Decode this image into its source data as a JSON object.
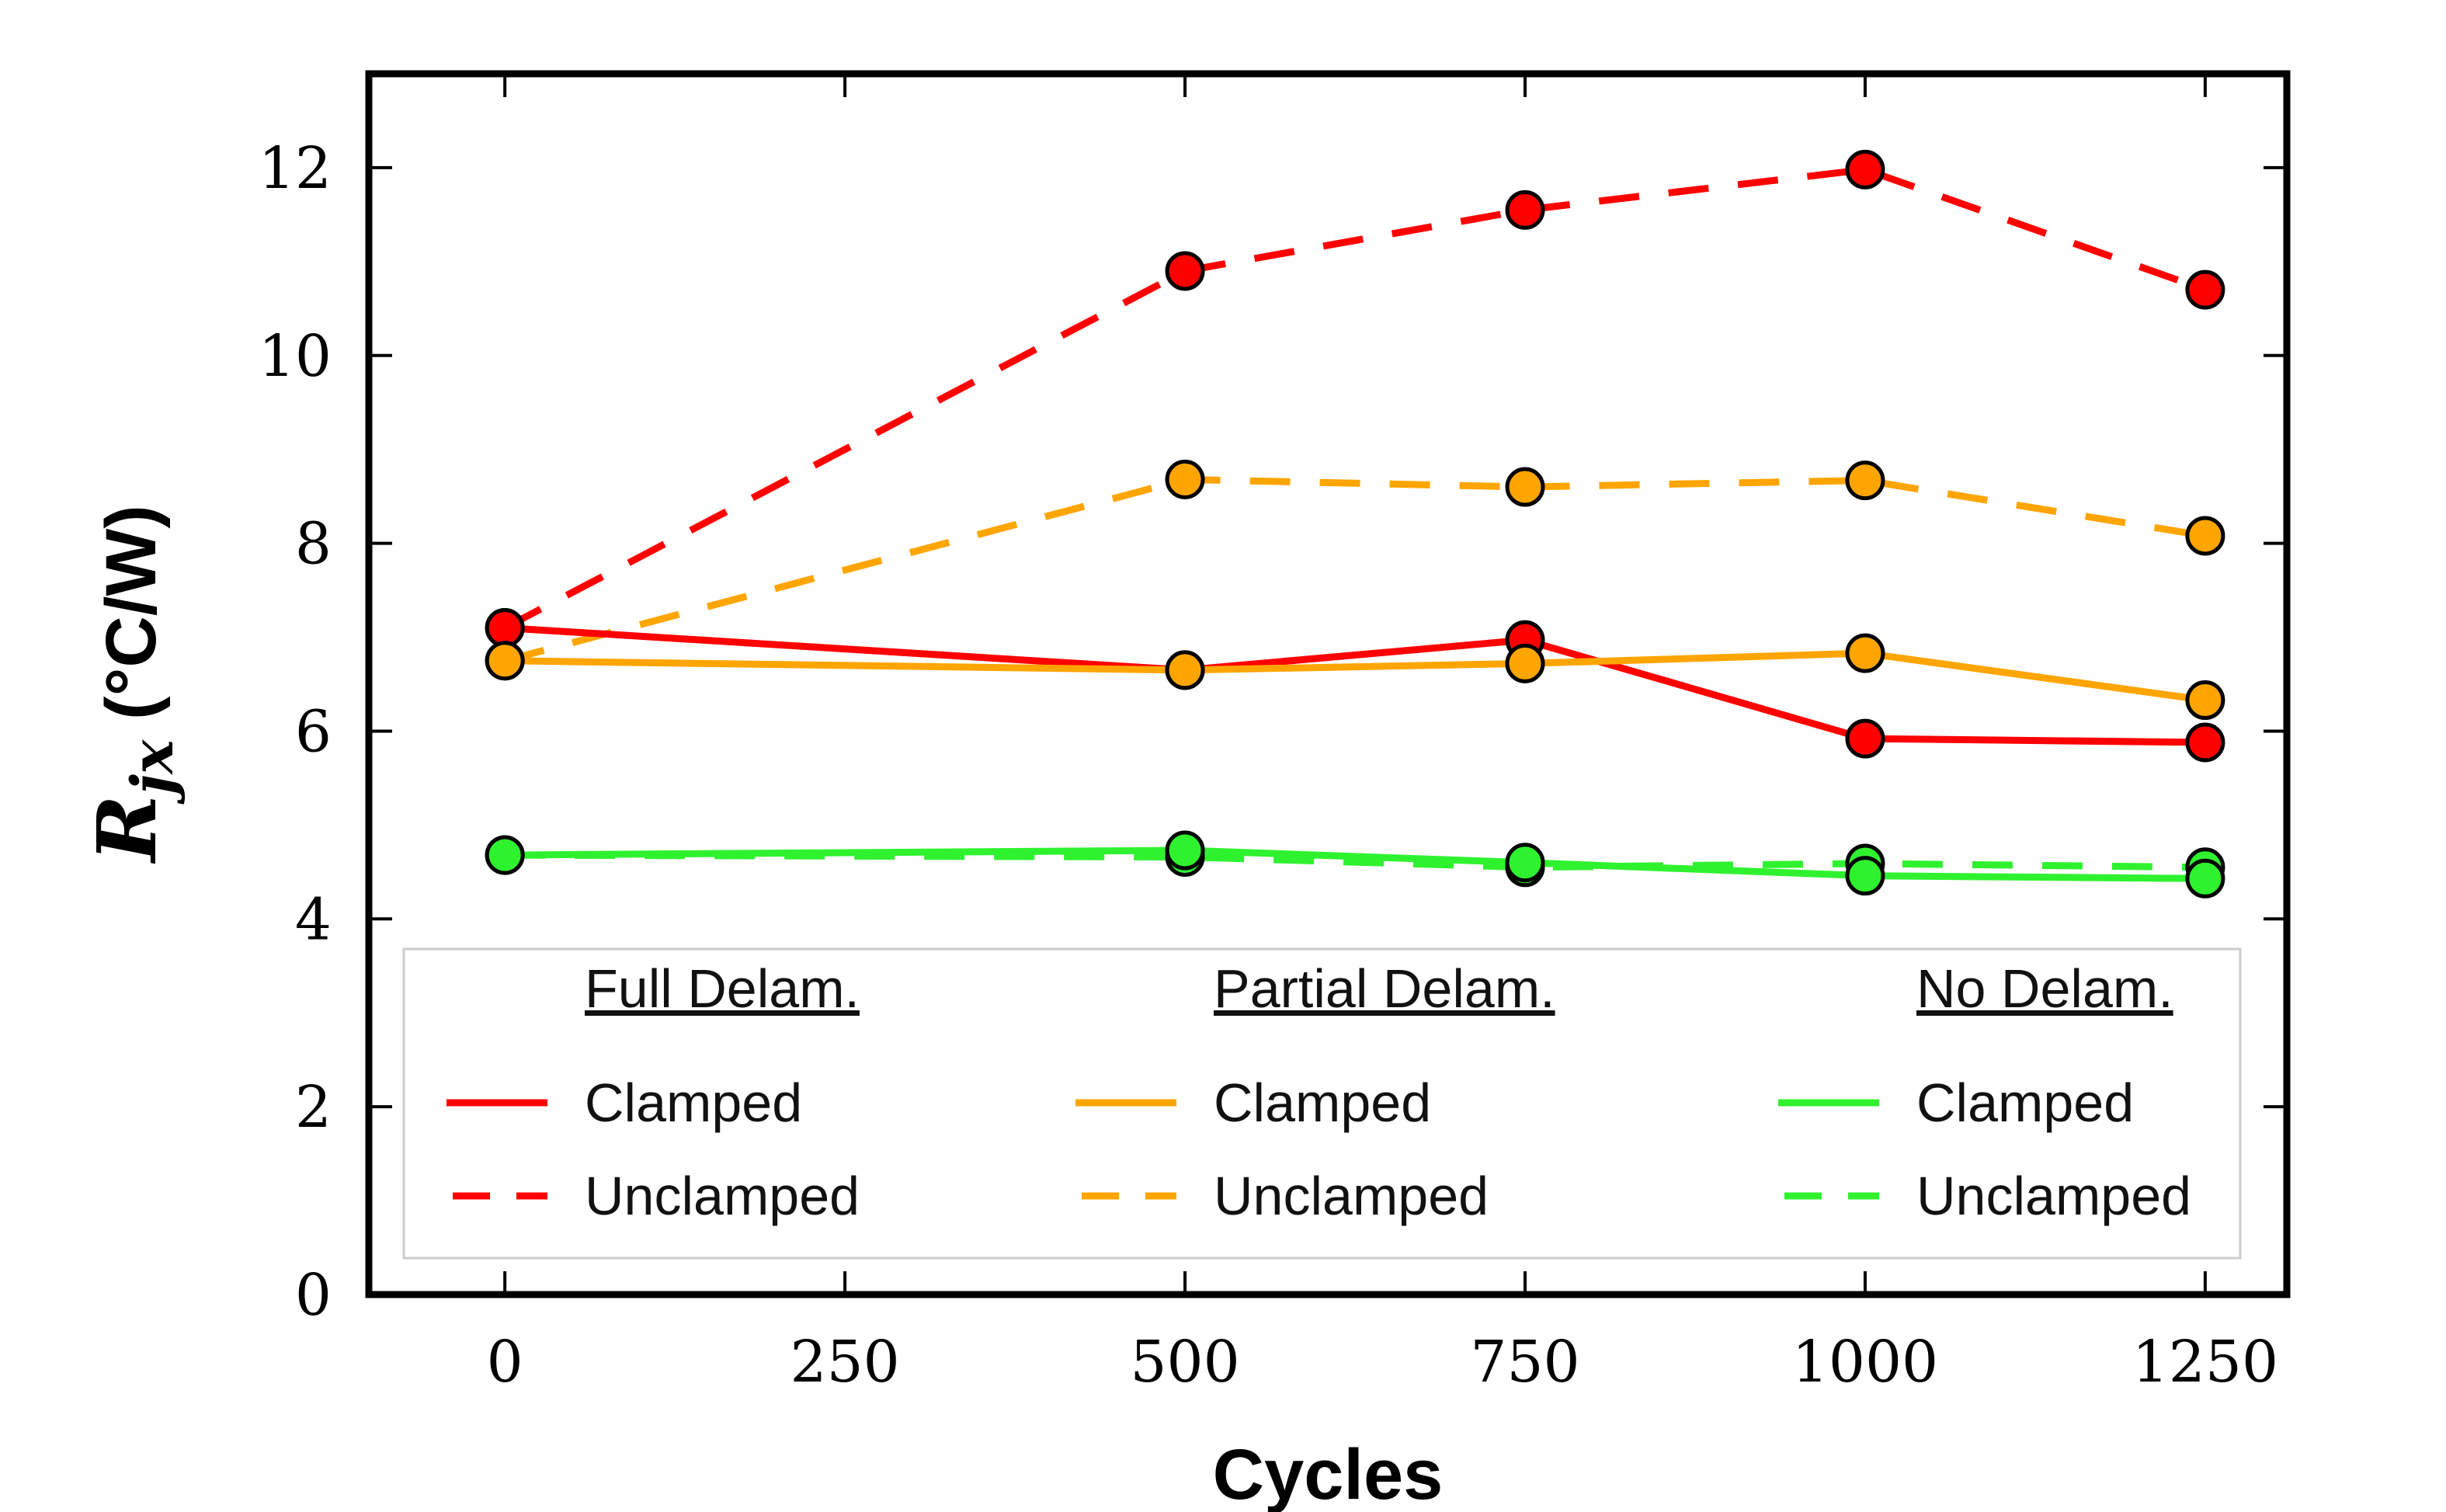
{
  "chart_data": {
    "type": "line",
    "xlabel": "Cycles",
    "ylabel": {
      "main": "R",
      "sub": "jx",
      "unit": " (°C/W)"
    },
    "xlim": [
      -100,
      1310
    ],
    "ylim": [
      0,
      13
    ],
    "xticks": [
      0,
      250,
      500,
      750,
      1000,
      1250
    ],
    "yticks": [
      0,
      2,
      4,
      6,
      8,
      10,
      12
    ],
    "x": [
      0,
      500,
      750,
      1000,
      1250
    ],
    "grid": false,
    "legend": {
      "placement": "bottom",
      "groups": [
        {
          "title": "Full Delam.",
          "entries": [
            "Clamped",
            "Unclamped"
          ]
        },
        {
          "title": "Partial Delam.",
          "entries": [
            "Clamped",
            "Unclamped"
          ]
        },
        {
          "title": "No Delam.",
          "entries": [
            "Clamped",
            "Unclamped"
          ]
        }
      ]
    },
    "series": [
      {
        "group": "Full Delam.",
        "label": "Clamped",
        "color": "#ff0000",
        "dashed": false,
        "values": [
          7.1,
          6.65,
          6.97,
          5.92,
          5.88
        ]
      },
      {
        "group": "Full Delam.",
        "label": "Unclamped",
        "color": "#ff0000",
        "dashed": true,
        "values": [
          7.1,
          10.9,
          11.55,
          11.98,
          10.7
        ]
      },
      {
        "group": "Partial Delam.",
        "label": "Clamped",
        "color": "#ffa500",
        "dashed": false,
        "values": [
          6.75,
          6.65,
          6.72,
          6.83,
          6.33
        ]
      },
      {
        "group": "Partial Delam.",
        "label": "Unclamped",
        "color": "#ffa500",
        "dashed": true,
        "values": [
          6.75,
          8.68,
          8.6,
          8.67,
          8.08
        ]
      },
      {
        "group": "No Delam.",
        "label": "Clamped",
        "color": "#2ff22f",
        "dashed": false,
        "values": [
          4.68,
          4.73,
          4.6,
          4.46,
          4.43
        ]
      },
      {
        "group": "No Delam.",
        "label": "Unclamped",
        "color": "#2ff22f",
        "dashed": true,
        "values": [
          4.68,
          4.66,
          4.55,
          4.59,
          4.55
        ]
      }
    ]
  }
}
